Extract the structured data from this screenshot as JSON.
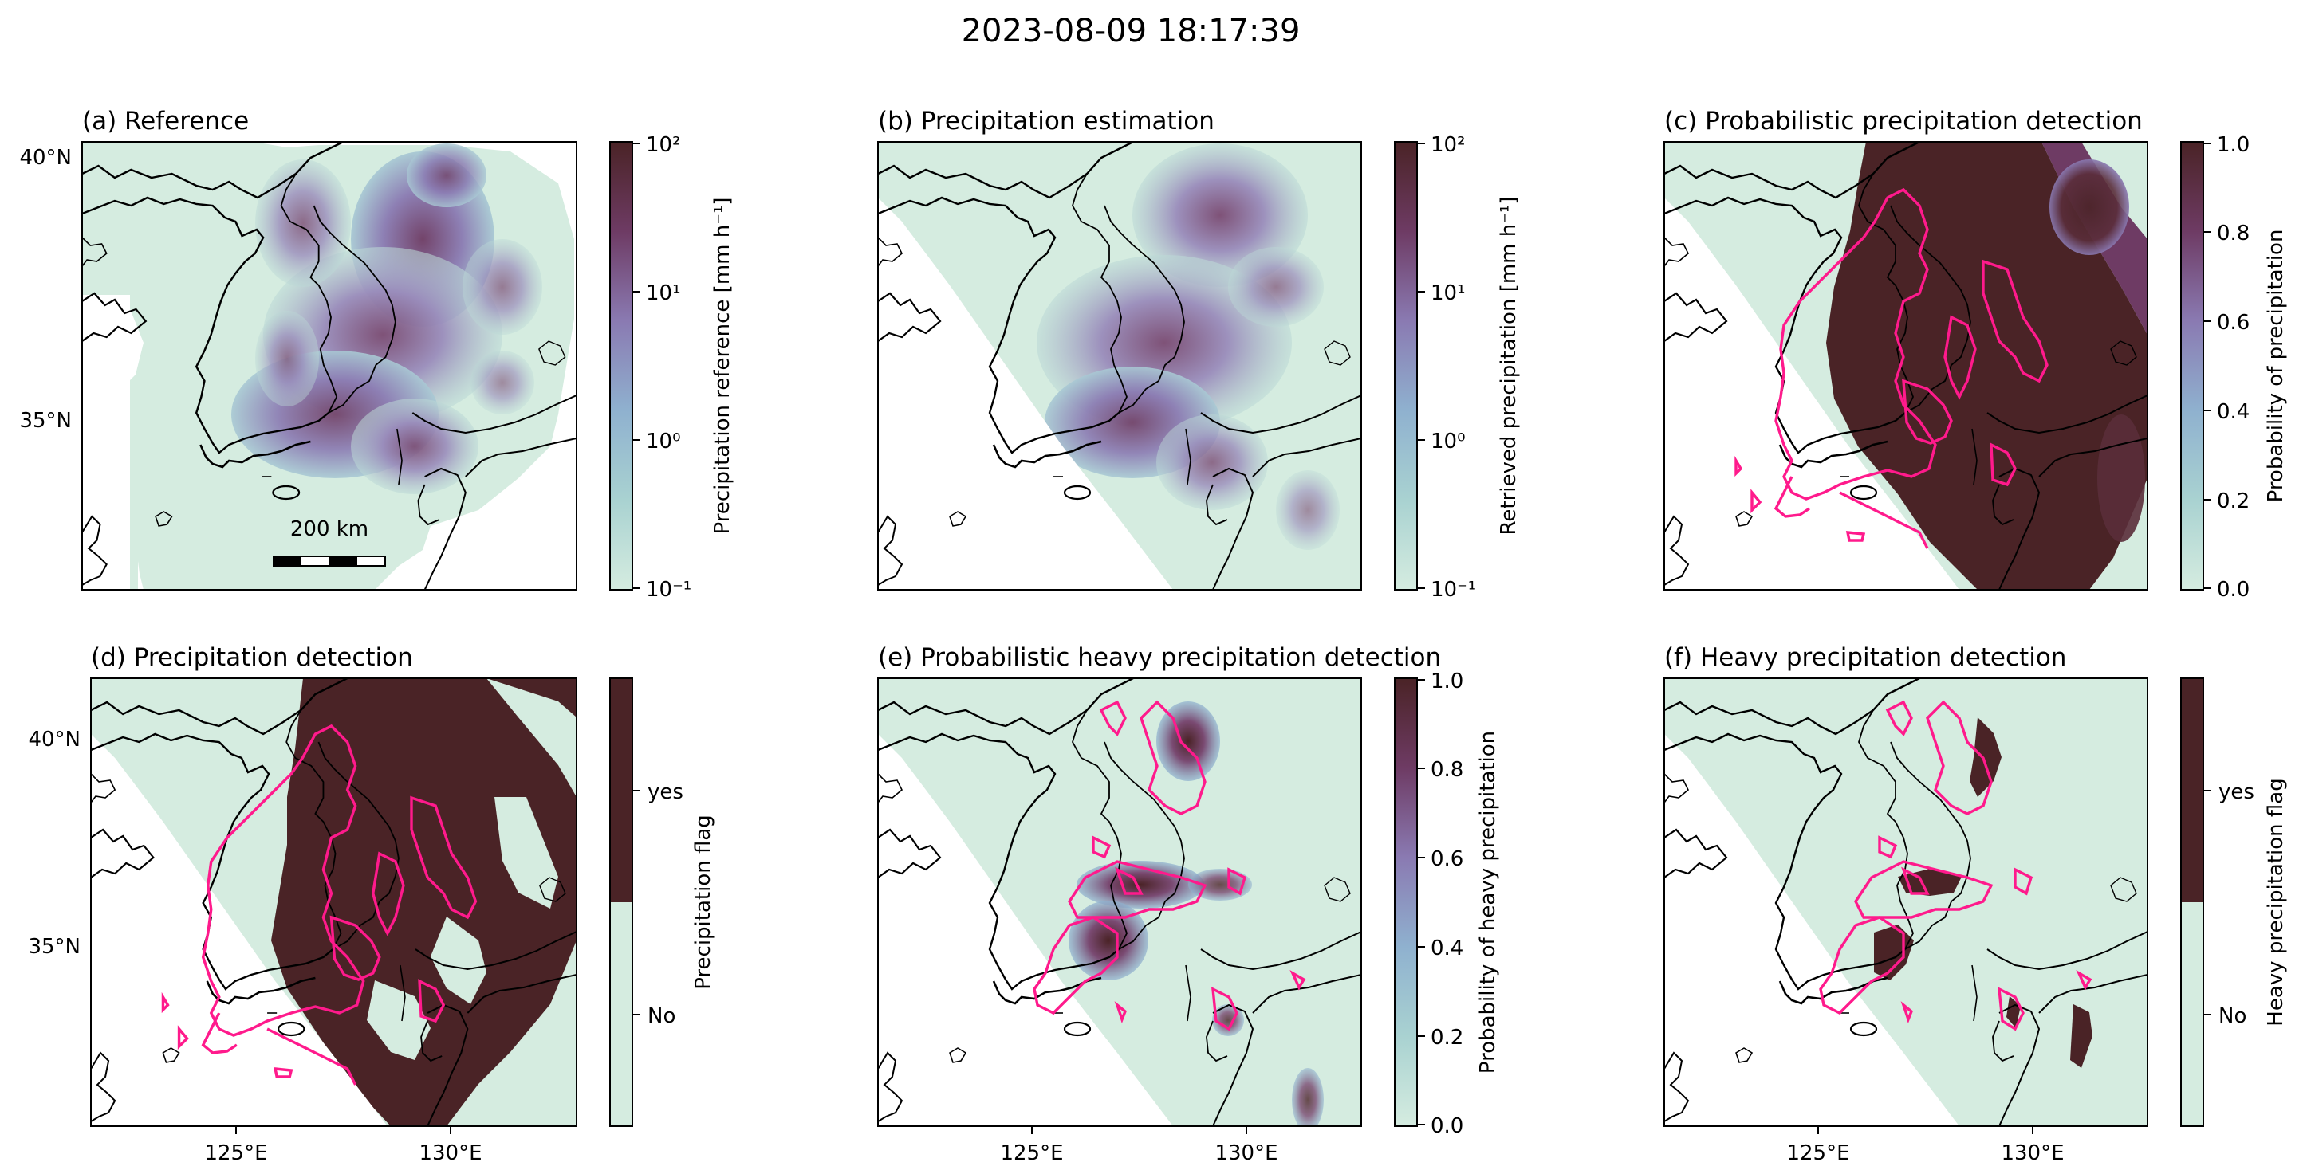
{
  "figure": {
    "suptitle": "2023-08-09 18:17:39",
    "colors": {
      "no_rain": "#d5ece0",
      "light": "#9cc6cc",
      "medium": "#8a7ab2",
      "heavy": "#6e3b64",
      "very_heavy": "#4a2326",
      "contour": "#ff1a8c",
      "coast": "#000000"
    },
    "panels": [
      {
        "title": "(a) Reference",
        "colorbar": {
          "label": "Precipitation reference [mm h⁻¹]",
          "scale": "log",
          "ticks": [
            "10²",
            "10¹",
            "10⁰",
            "10⁻¹"
          ]
        },
        "lat_labels": [
          "40°N",
          "35°N"
        ],
        "lon_labels": [],
        "scalebar": "200 km"
      },
      {
        "title": "(b) Precipitation estimation",
        "colorbar": {
          "label": "Retrieved precipitation [mm h⁻¹]",
          "scale": "log",
          "ticks": [
            "10²",
            "10¹",
            "10⁰",
            "10⁻¹"
          ]
        },
        "lat_labels": [],
        "lon_labels": []
      },
      {
        "title": "(c) Probabilistic precipitation detection",
        "colorbar": {
          "label": "Probability of precipitation",
          "scale": "linear",
          "ticks": [
            "1.0",
            "0.8",
            "0.6",
            "0.4",
            "0.2",
            "0.0"
          ]
        },
        "lat_labels": [],
        "lon_labels": []
      },
      {
        "title": "(d) Precipitation detection",
        "colorbar": {
          "label": "Precipitation flag",
          "scale": "categorical",
          "ticks": [
            "yes",
            "No"
          ]
        },
        "lat_labels": [
          "40°N",
          "35°N"
        ],
        "lon_labels": [
          "125°E",
          "130°E"
        ]
      },
      {
        "title": "(e) Probabilistic heavy precipitation detection",
        "colorbar": {
          "label": "Probability of heavy precipitation",
          "scale": "linear",
          "ticks": [
            "1.0",
            "0.8",
            "0.6",
            "0.4",
            "0.2",
            "0.0"
          ]
        },
        "lat_labels": [],
        "lon_labels": [
          "125°E",
          "130°E"
        ]
      },
      {
        "title": "(f) Heavy precipitation detection",
        "colorbar": {
          "label": "Heavy precipitation flag",
          "scale": "categorical",
          "ticks": [
            "yes",
            "No"
          ]
        },
        "lat_labels": [],
        "lon_labels": [
          "125°E",
          "130°E"
        ]
      }
    ]
  }
}
